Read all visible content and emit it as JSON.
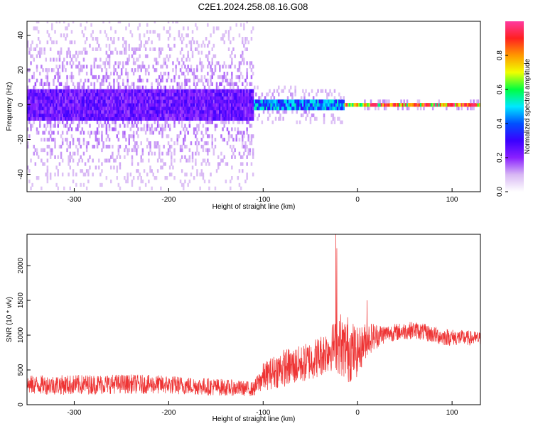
{
  "title": "C2E1.2024.258.08.16.G08",
  "chart_data": [
    {
      "type": "heatmap",
      "xlabel": "Height of straight line (km)",
      "ylabel": "Frequency (Hz)",
      "xlim": [
        -350,
        130
      ],
      "ylim": [
        -50,
        48
      ],
      "xticks": [
        -300,
        -200,
        -100,
        0,
        100
      ],
      "yticks": [
        -40,
        -20,
        0,
        20,
        40
      ],
      "colorbar": {
        "label": "Normalized spectral amplitude",
        "range": [
          0.0,
          1.0
        ],
        "ticks": [
          "0.0",
          "0.2",
          "0.4",
          "0.6",
          "0.8"
        ],
        "tick_values": [
          0.0,
          0.2,
          0.4,
          0.6,
          0.8
        ],
        "colormap": [
          "#ffffff",
          "#d8b8f4",
          "#8a20ff",
          "#3a00ff",
          "#0050ff",
          "#00e8ff",
          "#00ff40",
          "#f0ff00",
          "#ff9800",
          "#ff2020",
          "#ff3aa0"
        ]
      },
      "regions": [
        {
          "x_range": [
            -350,
            -110
          ],
          "spread_hz": 48,
          "core_hz": 10,
          "peak_amplitude": 0.3
        },
        {
          "x_range": [
            -110,
            -15
          ],
          "spread_hz": 10,
          "core_hz": 4,
          "peak_amplitude": 0.55
        },
        {
          "x_range": [
            -15,
            130
          ],
          "spread_hz": 3,
          "core_hz": 1,
          "peak_amplitude": 1.0
        }
      ]
    },
    {
      "type": "line",
      "xlabel": "Height of straight line (km)",
      "ylabel": "SNR (10 * v/v)",
      "xlim": [
        -350,
        130
      ],
      "ylim": [
        0,
        2450
      ],
      "xticks": [
        -300,
        -200,
        -100,
        0,
        100
      ],
      "yticks": [
        0,
        500,
        1000,
        1500,
        2000
      ],
      "color": "#ee3333",
      "envelope": [
        {
          "x": -350,
          "low": 150,
          "high": 420
        },
        {
          "x": -300,
          "low": 140,
          "high": 430
        },
        {
          "x": -250,
          "low": 160,
          "high": 440
        },
        {
          "x": -200,
          "low": 150,
          "high": 420
        },
        {
          "x": -150,
          "low": 130,
          "high": 380
        },
        {
          "x": -110,
          "low": 120,
          "high": 330
        },
        {
          "x": -100,
          "low": 200,
          "high": 600
        },
        {
          "x": -80,
          "low": 250,
          "high": 800
        },
        {
          "x": -60,
          "low": 300,
          "high": 850
        },
        {
          "x": -40,
          "low": 400,
          "high": 1000
        },
        {
          "x": -25,
          "low": 500,
          "high": 1200
        },
        {
          "x": -10,
          "low": 300,
          "high": 1300
        },
        {
          "x": 0,
          "low": 400,
          "high": 1100
        },
        {
          "x": 10,
          "low": 700,
          "high": 1200
        },
        {
          "x": 30,
          "low": 900,
          "high": 1150
        },
        {
          "x": 60,
          "low": 950,
          "high": 1200
        },
        {
          "x": 90,
          "low": 850,
          "high": 1100
        },
        {
          "x": 130,
          "low": 850,
          "high": 1050
        }
      ],
      "spikes": [
        {
          "x": -23,
          "y": 2450
        },
        {
          "x": -22,
          "y": 2250
        },
        {
          "x": -18,
          "y": 1300
        },
        {
          "x": 10,
          "y": 1500
        }
      ]
    }
  ]
}
